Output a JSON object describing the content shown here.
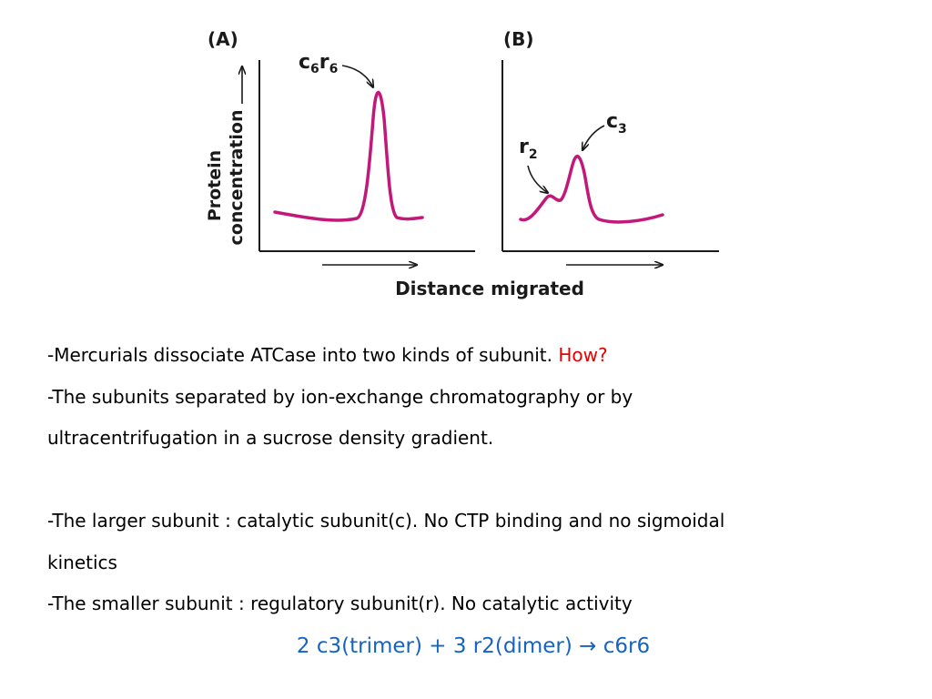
{
  "figure": {
    "panel_a": {
      "label": "(A)",
      "peak_label": {
        "base": "c",
        "sub1": "6",
        "mid": "r",
        "sub2": "6"
      }
    },
    "panel_b": {
      "label": "(B)",
      "peak_r_label": {
        "base": "r",
        "sub": "2"
      },
      "peak_c_label": {
        "base": "c",
        "sub": "3"
      }
    },
    "y_axis_label_line1": "Protein",
    "y_axis_label_line2": "concentration",
    "x_axis_label": "Distance migrated",
    "curve_color": "#c2187a"
  },
  "text": {
    "line1_main": "-Mercurials dissociate ATCase into two kinds of subunit. ",
    "line1_question": "How?",
    "line2": "-The subunits separated by ion-exchange chromatography or by",
    "line3": "ultracentrifugation in a sucrose density gradient.",
    "line4": "-The larger subunit : catalytic subunit(c). No CTP binding and no sigmoidal",
    "line5": "kinetics",
    "line6": "-The smaller subunit : regulatory subunit(r). No catalytic activity",
    "equation": "2 c3(trimer) + 3 r2(dimer) → c6r6"
  },
  "colors": {
    "question": "#e60000",
    "equation": "#1565c0"
  }
}
